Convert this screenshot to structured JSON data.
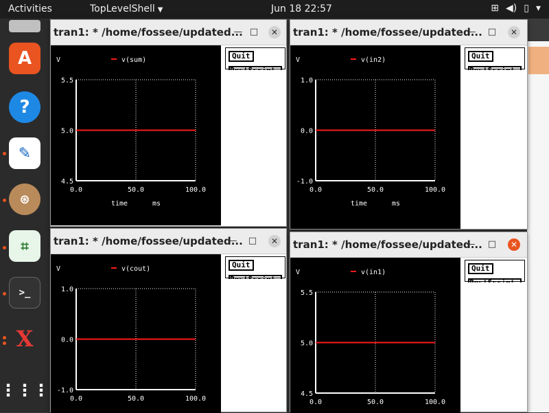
{
  "topbar": {
    "activities": "Activities",
    "app_name": "TopLevelShell",
    "clock": "Jun 18  22:57"
  },
  "windows": [
    {
      "title": "tran1: * /home/fossee/updated...",
      "quit_label": "Quit",
      "postscript_label": "PostScript",
      "y_unit": "V",
      "legend": "v(sum)",
      "y_ticks": [
        "5.5",
        "5.0",
        "4.5"
      ],
      "x_ticks": [
        "0.0",
        "50.0",
        "100.0"
      ],
      "x_label": "time",
      "x_unit": "ms",
      "trace_color": "#ff1a1a"
    },
    {
      "title": "tran1: * /home/fossee/updated...",
      "quit_label": "Quit",
      "postscript_label": "PostScript",
      "y_unit": "V",
      "legend": "v(in2)",
      "y_ticks": [
        "1.0",
        "0.0",
        "-1.0"
      ],
      "x_ticks": [
        "0.0",
        "50.0",
        "100.0"
      ],
      "x_label": "time",
      "x_unit": "ms",
      "trace_color": "#ff1a1a"
    },
    {
      "title": "tran1: * /home/fossee/updated...",
      "quit_label": "Quit",
      "postscript_label": "PostScript",
      "y_unit": "V",
      "legend": "v(cout)",
      "y_ticks": [
        "1.0",
        "0.0",
        "-1.0"
      ],
      "x_ticks": [
        "0.0",
        "50.0",
        "100.0"
      ],
      "x_label": "",
      "x_unit": "",
      "trace_color": "#ff1a1a"
    },
    {
      "title": "tran1: * /home/fossee/updated...",
      "quit_label": "Quit",
      "postscript_label": "PostScript",
      "y_unit": "V",
      "legend": "v(in1)",
      "y_ticks": [
        "5.5",
        "5.0",
        "4.5"
      ],
      "x_ticks": [
        "0.0",
        "50.0",
        "100.0"
      ],
      "x_label": "",
      "x_unit": "",
      "trace_color": "#ff1a1a"
    }
  ],
  "window_controls": {
    "minimize": "—",
    "maximize": "□",
    "close": "✕"
  },
  "icons": [
    "network-icon",
    "volume-icon",
    "battery-icon",
    "power-menu-icon"
  ]
}
